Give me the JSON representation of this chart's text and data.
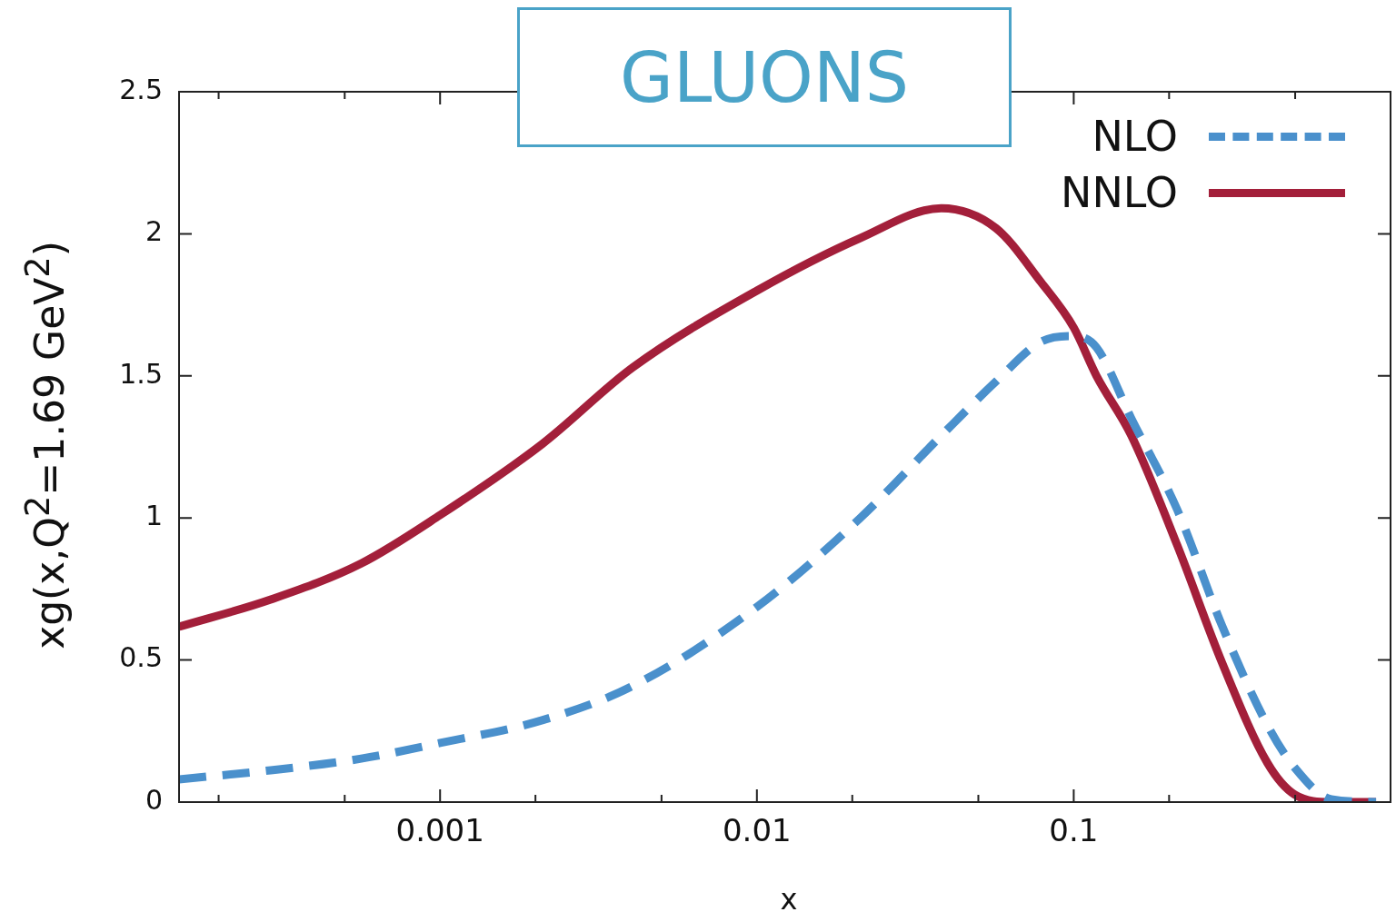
{
  "chart_data": {
    "type": "line",
    "title": "GLUONS",
    "xlabel": "x",
    "ylabel": "xg(x,Q$^{2}$=1.69 GeV$^{2}$)",
    "log": "x",
    "legend": "top right",
    "marker": "none",
    "x": [
      0.00015,
      0.000292,
      0.000564,
      0.001,
      0.0021,
      0.00406,
      0.01,
      0.0212,
      0.0382,
      0.0568,
      0.0788,
      0.1,
      0.118,
      0.152,
      0.212,
      0.294,
      0.409,
      0.499,
      0.65,
      0.9
    ],
    "series": [
      {
        "name": "NLO",
        "color": "#4a90cc",
        "line_style": "dashed",
        "values": [
          0.08,
          0.112,
          0.153,
          0.208,
          0.288,
          0.409,
          0.687,
          1.0,
          1.29,
          1.48,
          1.62,
          1.64,
          1.6,
          1.35,
          1.03,
          0.62,
          0.27,
          0.12,
          0.01,
          0.0
        ]
      },
      {
        "name": "NNLO",
        "color": "#a31f3a",
        "line_style": "solid",
        "values": [
          0.617,
          0.713,
          0.84,
          1.01,
          1.26,
          1.53,
          1.8,
          1.985,
          2.09,
          2.02,
          1.83,
          1.67,
          1.5,
          1.29,
          0.905,
          0.49,
          0.137,
          0.026,
          0.0,
          0.0
        ]
      }
    ],
    "xlim": [
      0.00015,
      1
    ],
    "ylim": [
      0,
      2.5
    ],
    "xticks": [
      {
        "value": 0.0002,
        "label": null
      },
      {
        "value": 0.0005,
        "label": null
      },
      0.001,
      {
        "value": 0.002,
        "label": null
      },
      {
        "value": 0.005,
        "label": null
      },
      0.01,
      {
        "value": 0.02,
        "label": null
      },
      {
        "value": 0.05,
        "label": null
      },
      0.1,
      {
        "value": 0.2,
        "label": null
      },
      {
        "value": 0.5,
        "label": null
      }
    ],
    "yticks": [
      0,
      0.5,
      1,
      1.5,
      2,
      2.5
    ]
  }
}
